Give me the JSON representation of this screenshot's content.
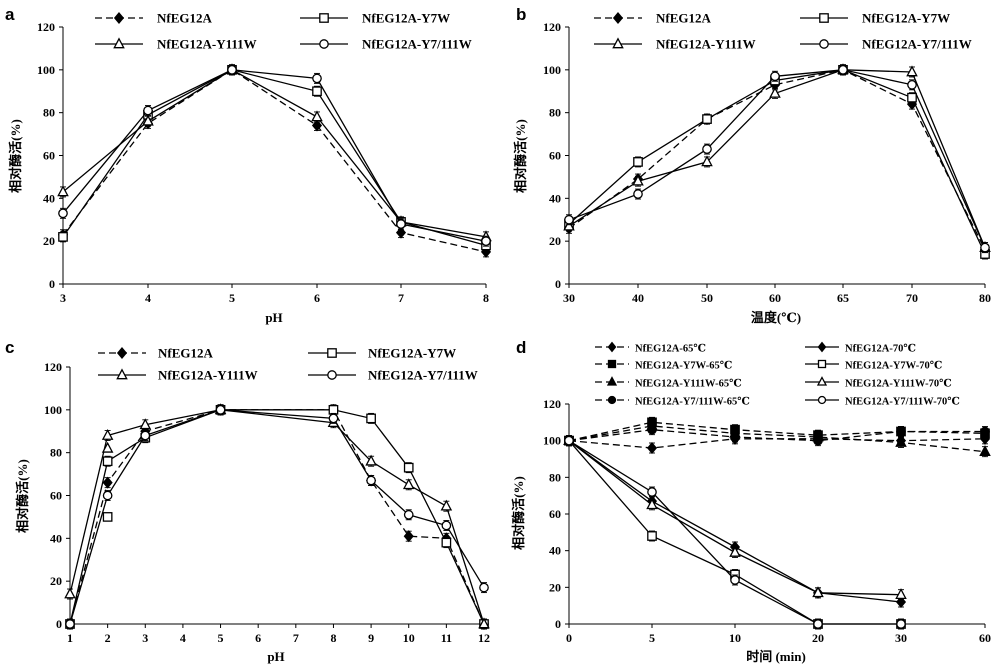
{
  "chart_data": [
    {
      "panel": "a",
      "type": "line",
      "xlabel": "pH",
      "ylabel": "相对酶活(%)",
      "x": [
        3,
        4,
        5,
        6,
        7,
        8
      ],
      "xticks": [
        "3",
        "4",
        "5",
        "6",
        "7",
        "8"
      ],
      "ylim": [
        0,
        120
      ],
      "yticks": [
        "0",
        "20",
        "40",
        "60",
        "80",
        "100",
        "120"
      ],
      "legend_columns": 2,
      "series": [
        {
          "name": "NfEG12A",
          "marker": "diamond",
          "fill": "#000000",
          "dash": true,
          "values": [
            23,
            75,
            100,
            74,
            24,
            15
          ]
        },
        {
          "name": "NfEG12A-Y7W",
          "marker": "square",
          "fill": "#ffffff",
          "dash": false,
          "values": [
            22,
            79,
            100,
            90,
            29,
            18
          ]
        },
        {
          "name": "NfEG12A-Y111W",
          "marker": "triangle",
          "fill": "#ffffff",
          "dash": false,
          "values": [
            43,
            76,
            100,
            78,
            29,
            22
          ]
        },
        {
          "name": "NfEG12A-Y7/111W",
          "marker": "circle",
          "fill": "#ffffff",
          "dash": false,
          "values": [
            33,
            81,
            100,
            96,
            28,
            20
          ]
        }
      ]
    },
    {
      "panel": "b",
      "type": "line",
      "xlabel": "温度(℃)",
      "ylabel": "相对酶活(%)",
      "x": [
        30,
        40,
        50,
        60,
        65,
        70,
        80
      ],
      "xticks": [
        "30",
        "40",
        "50",
        "60",
        "65",
        "70",
        "80"
      ],
      "ylim": [
        0,
        120
      ],
      "yticks": [
        "0",
        "20",
        "40",
        "60",
        "80",
        "100",
        "120"
      ],
      "legend_columns": 2,
      "series": [
        {
          "name": "NfEG12A",
          "marker": "diamond",
          "fill": "#000000",
          "dash": true,
          "values": [
            26,
            49,
            77,
            93,
            100,
            84,
            16
          ]
        },
        {
          "name": "NfEG12A-Y7W",
          "marker": "square",
          "fill": "#ffffff",
          "dash": false,
          "values": [
            28,
            57,
            77,
            95,
            100,
            87,
            14
          ]
        },
        {
          "name": "NfEG12A-Y111W",
          "marker": "triangle",
          "fill": "#ffffff",
          "dash": false,
          "values": [
            27,
            48,
            57,
            89,
            100,
            99,
            17
          ]
        },
        {
          "name": "NfEG12A-Y7/111W",
          "marker": "circle",
          "fill": "#ffffff",
          "dash": false,
          "values": [
            30,
            42,
            63,
            97,
            100,
            93,
            17
          ]
        }
      ]
    },
    {
      "panel": "c",
      "type": "line",
      "xlabel": "pH",
      "ylabel": "相对酶活(%)",
      "x": [
        1,
        2,
        3,
        5,
        8,
        9,
        10,
        11,
        12
      ],
      "xticks": [
        "1",
        "2",
        "3",
        "4",
        "5",
        "6",
        "7",
        "8",
        "9",
        "10",
        "11",
        "12"
      ],
      "ylim": [
        0,
        120
      ],
      "yticks": [
        "0",
        "20",
        "40",
        "60",
        "80",
        "100",
        "120"
      ],
      "legend_columns": 2,
      "series": [
        {
          "name": "NfEG12A",
          "marker": "diamond",
          "fill": "#000000",
          "dash": true,
          "values": [
            0,
            66,
            90,
            100,
            100,
            67,
            41,
            40,
            0
          ]
        },
        {
          "name": "NfEG12A-Y7W",
          "marker": "square",
          "fill": "#ffffff",
          "dash": false,
          "values": [
            0,
            76,
            87,
            100,
            100,
            96,
            73,
            38,
            0
          ]
        },
        {
          "name": "NfEG12A-Y111W",
          "marker": "triangle",
          "fill": "#ffffff",
          "dash": false,
          "values": [
            14,
            88,
            93,
            100,
            94,
            76,
            65,
            55,
            0
          ]
        },
        {
          "name": "NfEG12A-Y7/111W",
          "marker": "circle",
          "fill": "#ffffff",
          "dash": false,
          "values": [
            0,
            60,
            88,
            100,
            96,
            67,
            51,
            46,
            17
          ]
        }
      ],
      "extra_markers": [
        {
          "series": "NfEG12A-Y7W",
          "x": 2,
          "value": 50
        },
        {
          "series": "NfEG12A-Y111W",
          "x": 2,
          "value": 82
        }
      ]
    },
    {
      "panel": "d",
      "type": "line",
      "xlabel": "时间 (min)",
      "ylabel": "相对酶活(%)",
      "x": [
        0,
        5,
        10,
        20,
        30,
        60
      ],
      "xticks": [
        "0",
        "5",
        "10",
        "20",
        "30",
        "60"
      ],
      "ylim": [
        0,
        120
      ],
      "yticks": [
        "0",
        "20",
        "40",
        "60",
        "80",
        "100",
        "120"
      ],
      "legend_columns": 2,
      "series": [
        {
          "name": "NfEG12A-65℃",
          "marker": "diamond",
          "fill": "#000000",
          "dash": true,
          "values": [
            100,
            96,
            101,
            101,
            100,
            101
          ]
        },
        {
          "name": "NfEG12A-70℃",
          "marker": "diamond",
          "fill": "#000000",
          "dash": false,
          "values": [
            100,
            67,
            42,
            17,
            12,
            null
          ]
        },
        {
          "name": "NfEG12A-Y7W-65℃",
          "marker": "square",
          "fill": "#000000",
          "dash": true,
          "values": [
            100,
            110,
            106,
            103,
            105,
            104
          ]
        },
        {
          "name": "NfEG12A-Y7W-70℃",
          "marker": "square",
          "fill": "#ffffff",
          "dash": false,
          "values": [
            100,
            48,
            27,
            0,
            0,
            null
          ]
        },
        {
          "name": "NfEG12A-Y111W-65℃",
          "marker": "triangle",
          "fill": "#000000",
          "dash": true,
          "values": [
            100,
            108,
            104,
            102,
            99,
            94
          ]
        },
        {
          "name": "NfEG12A-Y111W-70℃",
          "marker": "triangle",
          "fill": "#ffffff",
          "dash": false,
          "values": [
            100,
            65,
            39,
            17,
            16,
            null
          ]
        },
        {
          "name": "NfEG12A-Y7/111W-65℃",
          "marker": "circle",
          "fill": "#000000",
          "dash": true,
          "values": [
            100,
            106,
            102,
            100,
            105,
            105
          ]
        },
        {
          "name": "NfEG12A-Y7/111W-70℃",
          "marker": "circle",
          "fill": "#ffffff",
          "dash": false,
          "values": [
            100,
            72,
            24,
            0,
            0,
            null
          ]
        }
      ]
    }
  ]
}
